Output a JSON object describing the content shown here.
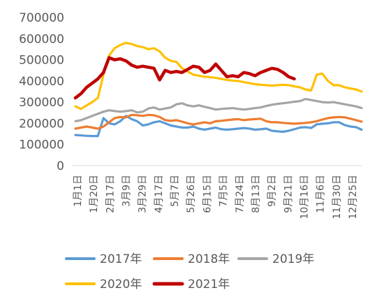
{
  "chart_data": {
    "type": "line",
    "title": "",
    "xlabel": "",
    "ylabel": "",
    "ylim": [
      0,
      700000
    ],
    "yticks": [
      "700000",
      "600000",
      "500000",
      "400000",
      "300000",
      "200000",
      "100000",
      "0"
    ],
    "yvalues": [
      700000,
      600000,
      500000,
      400000,
      300000,
      200000,
      100000,
      0
    ],
    "xtick_labels": [
      "1月1日",
      "1月20日",
      "2月17日",
      "3月9日",
      "3月29日",
      "4月17日",
      "5月7日",
      "5月26日",
      "6月15日",
      "7月5日",
      "7月24日",
      "8月13日",
      "9月2日",
      "9月21日",
      "10月16日",
      "11月6日",
      "11月30日",
      "12月25日"
    ],
    "grid": false,
    "legend_position": "bottom",
    "x_points": 52,
    "series": [
      {
        "name": "2017年",
        "color": "#5b9bd5",
        "values": [
          145000,
          143000,
          141000,
          140000,
          140000,
          225000,
          200000,
          195000,
          210000,
          235000,
          220000,
          210000,
          190000,
          195000,
          205000,
          210000,
          200000,
          190000,
          185000,
          180000,
          180000,
          185000,
          175000,
          170000,
          175000,
          180000,
          172000,
          170000,
          172000,
          175000,
          178000,
          175000,
          170000,
          172000,
          175000,
          165000,
          162000,
          160000,
          165000,
          172000,
          180000,
          182000,
          178000,
          195000,
          198000,
          200000,
          205000,
          205000,
          192000,
          185000,
          182000,
          170000
        ]
      },
      {
        "name": "2018年",
        "color": "#ed7d31",
        "values": [
          175000,
          180000,
          185000,
          180000,
          175000,
          185000,
          205000,
          225000,
          230000,
          228000,
          240000,
          238000,
          235000,
          240000,
          238000,
          230000,
          215000,
          212000,
          215000,
          208000,
          200000,
          195000,
          200000,
          205000,
          200000,
          210000,
          212000,
          215000,
          218000,
          220000,
          215000,
          218000,
          220000,
          222000,
          210000,
          205000,
          205000,
          202000,
          200000,
          198000,
          200000,
          202000,
          205000,
          210000,
          218000,
          225000,
          228000,
          230000,
          228000,
          222000,
          215000,
          208000
        ]
      },
      {
        "name": "2019年",
        "color": "#a5a5a5",
        "values": [
          210000,
          215000,
          225000,
          235000,
          245000,
          255000,
          262000,
          258000,
          255000,
          258000,
          262000,
          252000,
          255000,
          270000,
          275000,
          265000,
          270000,
          275000,
          290000,
          295000,
          285000,
          280000,
          285000,
          278000,
          272000,
          265000,
          268000,
          270000,
          272000,
          268000,
          265000,
          268000,
          272000,
          275000,
          282000,
          288000,
          292000,
          295000,
          298000,
          302000,
          305000,
          315000,
          310000,
          305000,
          300000,
          298000,
          300000,
          295000,
          290000,
          285000,
          280000,
          272000
        ]
      },
      {
        "name": "2020年",
        "color": "#ffc000",
        "values": [
          280000,
          268000,
          285000,
          300000,
          320000,
          430000,
          520000,
          555000,
          570000,
          580000,
          575000,
          565000,
          560000,
          550000,
          555000,
          540000,
          510000,
          495000,
          490000,
          460000,
          445000,
          430000,
          425000,
          420000,
          418000,
          415000,
          410000,
          405000,
          402000,
          400000,
          395000,
          390000,
          385000,
          382000,
          380000,
          378000,
          380000,
          382000,
          380000,
          375000,
          370000,
          360000,
          355000,
          430000,
          435000,
          400000,
          380000,
          380000,
          370000,
          365000,
          360000,
          350000
        ]
      },
      {
        "name": "2021年",
        "color": "#c00000",
        "values": [
          320000,
          340000,
          370000,
          390000,
          410000,
          440000,
          510000,
          500000,
          505000,
          495000,
          475000,
          465000,
          470000,
          465000,
          460000,
          405000,
          450000,
          440000,
          445000,
          440000,
          455000,
          470000,
          465000,
          440000,
          450000,
          480000,
          450000,
          420000,
          425000,
          420000,
          440000,
          435000,
          425000,
          440000,
          450000,
          460000,
          455000,
          440000,
          420000,
          410000
        ]
      }
    ]
  }
}
